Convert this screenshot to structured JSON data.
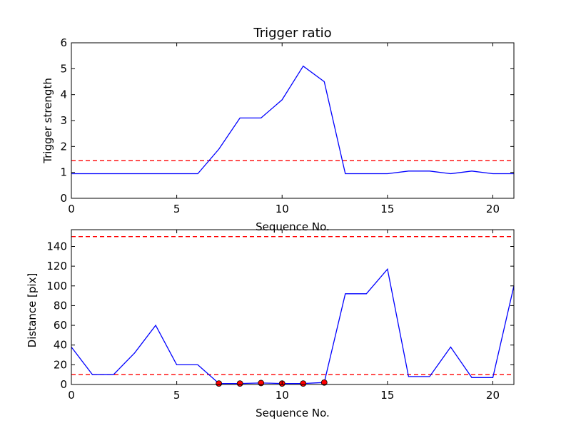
{
  "chart_data": [
    {
      "type": "line",
      "title": "Trigger ratio",
      "xlabel": "Sequence No.",
      "ylabel": "Trigger strength",
      "xlim": [
        0,
        21
      ],
      "ylim": [
        0,
        6
      ],
      "xticks": [
        0,
        5,
        10,
        15,
        20
      ],
      "yticks": [
        0,
        1,
        2,
        3,
        4,
        5,
        6
      ],
      "series": [
        {
          "color": "#0000ff",
          "x": [
            0,
            1,
            2,
            3,
            4,
            5,
            6,
            7,
            8,
            9,
            10,
            11,
            12,
            13,
            14,
            15,
            16,
            17,
            18,
            19,
            20,
            21
          ],
          "y": [
            0.95,
            0.95,
            0.95,
            0.95,
            0.95,
            0.95,
            0.95,
            1.9,
            3.1,
            3.1,
            3.8,
            5.1,
            4.5,
            0.95,
            0.95,
            0.95,
            1.05,
            1.05,
            0.95,
            1.05,
            0.95,
            0.95
          ]
        }
      ],
      "hlines": [
        {
          "y": 1.45,
          "color": "#ff0000",
          "style": "dashed"
        }
      ],
      "markers": []
    },
    {
      "type": "line",
      "title": "",
      "xlabel": "Sequence No.",
      "ylabel": "Distance [pix]",
      "xlim": [
        0,
        21
      ],
      "ylim": [
        0,
        157
      ],
      "xticks": [
        0,
        5,
        10,
        15,
        20
      ],
      "yticks": [
        0,
        20,
        40,
        60,
        80,
        100,
        120,
        140
      ],
      "series": [
        {
          "color": "#0000ff",
          "x": [
            0,
            1,
            2,
            3,
            4,
            5,
            6,
            7,
            8,
            9,
            10,
            11,
            12,
            13,
            14,
            15,
            16,
            17,
            18,
            19,
            20,
            21
          ],
          "y": [
            38,
            10,
            10,
            32,
            60,
            20,
            20,
            1,
            1,
            1.5,
            1,
            1,
            2,
            92,
            92,
            117,
            8,
            8,
            38,
            7,
            7,
            100
          ]
        }
      ],
      "hlines": [
        {
          "y": 150,
          "color": "#ff0000",
          "style": "dashed"
        },
        {
          "y": 10,
          "color": "#ff0000",
          "style": "dashed"
        }
      ],
      "markers": [
        {
          "x": 7,
          "y": 1
        },
        {
          "x": 8,
          "y": 1
        },
        {
          "x": 9,
          "y": 1.5
        },
        {
          "x": 10,
          "y": 1
        },
        {
          "x": 11,
          "y": 1
        },
        {
          "x": 12,
          "y": 2
        }
      ],
      "marker_color": "#ff0000"
    }
  ]
}
